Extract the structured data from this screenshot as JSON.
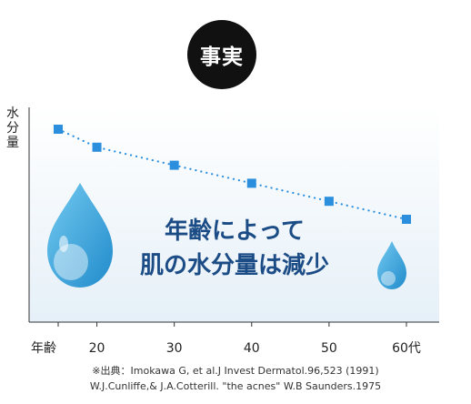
{
  "badge": {
    "label": "事実"
  },
  "chart_data": {
    "type": "scatter",
    "x_axis_label": "年齢",
    "y_axis_label": "水分量",
    "categories": [
      "20",
      "30",
      "40",
      "50",
      "60代"
    ],
    "x": [
      15,
      20,
      30,
      40,
      50,
      60
    ],
    "y": [
      10,
      9,
      8,
      7,
      6,
      5
    ],
    "xlim": [
      10,
      62
    ],
    "ylim": [
      0,
      10.5
    ],
    "y_units": "relative (no scale shown)",
    "trend_line": "dotted",
    "marker_color": "#2b8fde",
    "annotation": {
      "line1": "年齢によって",
      "line2": "肌の水分量は減少",
      "color": "#1c4c86"
    }
  },
  "source": {
    "line1": "※出典：Imokawa G, et al.J Invest Dermatol.96,523 (1991)",
    "line2": "W.J.Cunliffe,& J.A.Cotterill. \"the acnes\" W.B Saunders.1975"
  }
}
